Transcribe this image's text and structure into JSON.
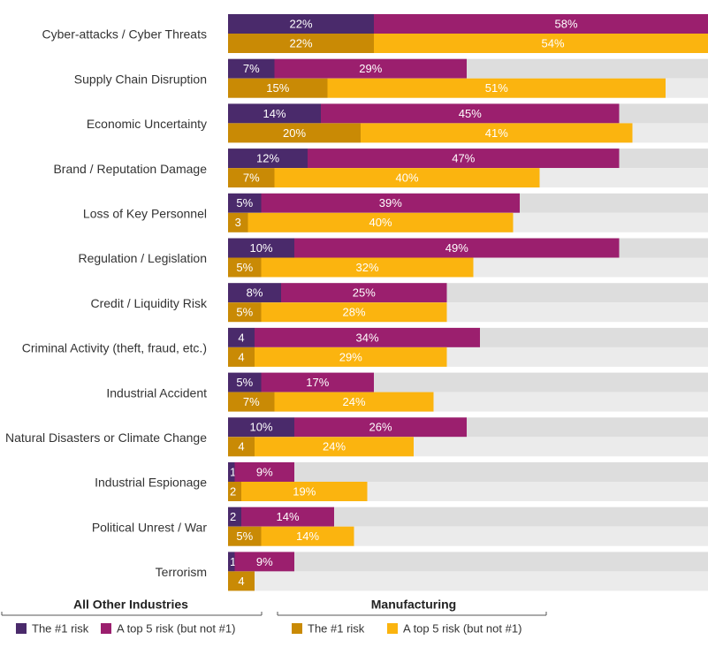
{
  "chart_data": {
    "type": "bar",
    "orientation": "horizontal",
    "stacked": true,
    "xlim": [
      0,
      100
    ],
    "categories": [
      "Cyber-attacks / Cyber Threats",
      "Supply Chain Disruption",
      "Economic Uncertainty",
      "Brand / Reputation Damage",
      "Loss of Key Personnel",
      "Regulation / Legislation",
      "Credit / Liquidity Risk",
      "Criminal Activity (theft, fraud, etc.)",
      "Industrial Accident",
      "Natural Disasters or Climate Change",
      "Industrial Espionage",
      "Political Unrest / War",
      "Terrorism"
    ],
    "groups": [
      {
        "name": "All Other Industries",
        "series": [
          {
            "name": "The #1 risk",
            "color": "#4a2a6b",
            "values": [
              22,
              7,
              14,
              12,
              5,
              10,
              8,
              4,
              5,
              10,
              1,
              2,
              1
            ],
            "labels": [
              "22%",
              "7%",
              "14%",
              "12%",
              "5%",
              "10%",
              "8%",
              "4",
              "5%",
              "10%",
              "1",
              "2",
              "1"
            ]
          },
          {
            "name": "A top 5 risk (but not #1)",
            "color": "#9b1f6e",
            "values": [
              58,
              29,
              45,
              47,
              39,
              49,
              25,
              34,
              17,
              26,
              9,
              14,
              9
            ],
            "labels": [
              "58%",
              "29%",
              "45%",
              "47%",
              "39%",
              "49%",
              "25%",
              "34%",
              "17%",
              "26%",
              "9%",
              "14%",
              "9%"
            ]
          }
        ]
      },
      {
        "name": "Manufacturing",
        "series": [
          {
            "name": "The #1 risk",
            "color": "#c98a05",
            "values": [
              22,
              15,
              20,
              7,
              3,
              5,
              5,
              4,
              7,
              4,
              2,
              5,
              4
            ],
            "labels": [
              "22%",
              "15%",
              "20%",
              "7%",
              "3",
              "5%",
              "5%",
              "4",
              "7%",
              "4",
              "2",
              "5%",
              "4"
            ]
          },
          {
            "name": "A top 5 risk (but not #1)",
            "color": "#fbb40f",
            "values": [
              54,
              51,
              41,
              40,
              40,
              32,
              28,
              29,
              24,
              24,
              19,
              14,
              0
            ],
            "labels": [
              "54%",
              "51%",
              "41%",
              "40%",
              "40%",
              "32%",
              "28%",
              "29%",
              "24%",
              "24%",
              "19%",
              "14%",
              ""
            ]
          }
        ]
      }
    ],
    "track_colors": [
      "#dddddd",
      "#ebebeb"
    ],
    "legend": {
      "placement": "bottom",
      "groups": [
        {
          "title": "All Other Industries",
          "items": [
            {
              "label": "The #1 risk",
              "color": "#4a2a6b"
            },
            {
              "label": "A top 5 risk (but not #1)",
              "color": "#9b1f6e"
            }
          ]
        },
        {
          "title": "Manufacturing",
          "items": [
            {
              "label": "The #1 risk",
              "color": "#c98a05"
            },
            {
              "label": "A top 5 risk (but not #1)",
              "color": "#fbb40f"
            }
          ]
        }
      ]
    }
  }
}
